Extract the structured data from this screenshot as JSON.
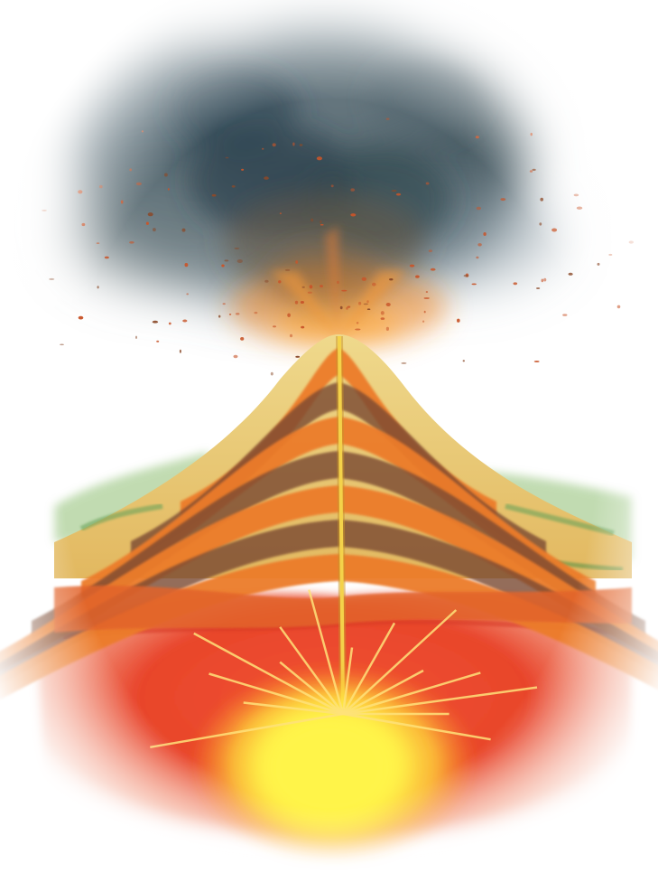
{
  "illustration": {
    "subject": "stratovolcano-cross-section",
    "colors": {
      "background": "#ffffff",
      "ash_cloud_dark": "#3f5560",
      "ash_cloud_light": "#8a9aa3",
      "ash_cloud_brown": "#6a5a45",
      "eruption_glow": "#f28a2a",
      "ejecta": "#c8552a",
      "mountain_surface": "#e9cf7a",
      "vegetation": "#7fb56a",
      "strata_orange": "#ec7c2c",
      "strata_dark": "#7a4a30",
      "conduit": "#f4d24a",
      "crust_red": "#e8452c",
      "magma_core": "#fff44a"
    }
  }
}
